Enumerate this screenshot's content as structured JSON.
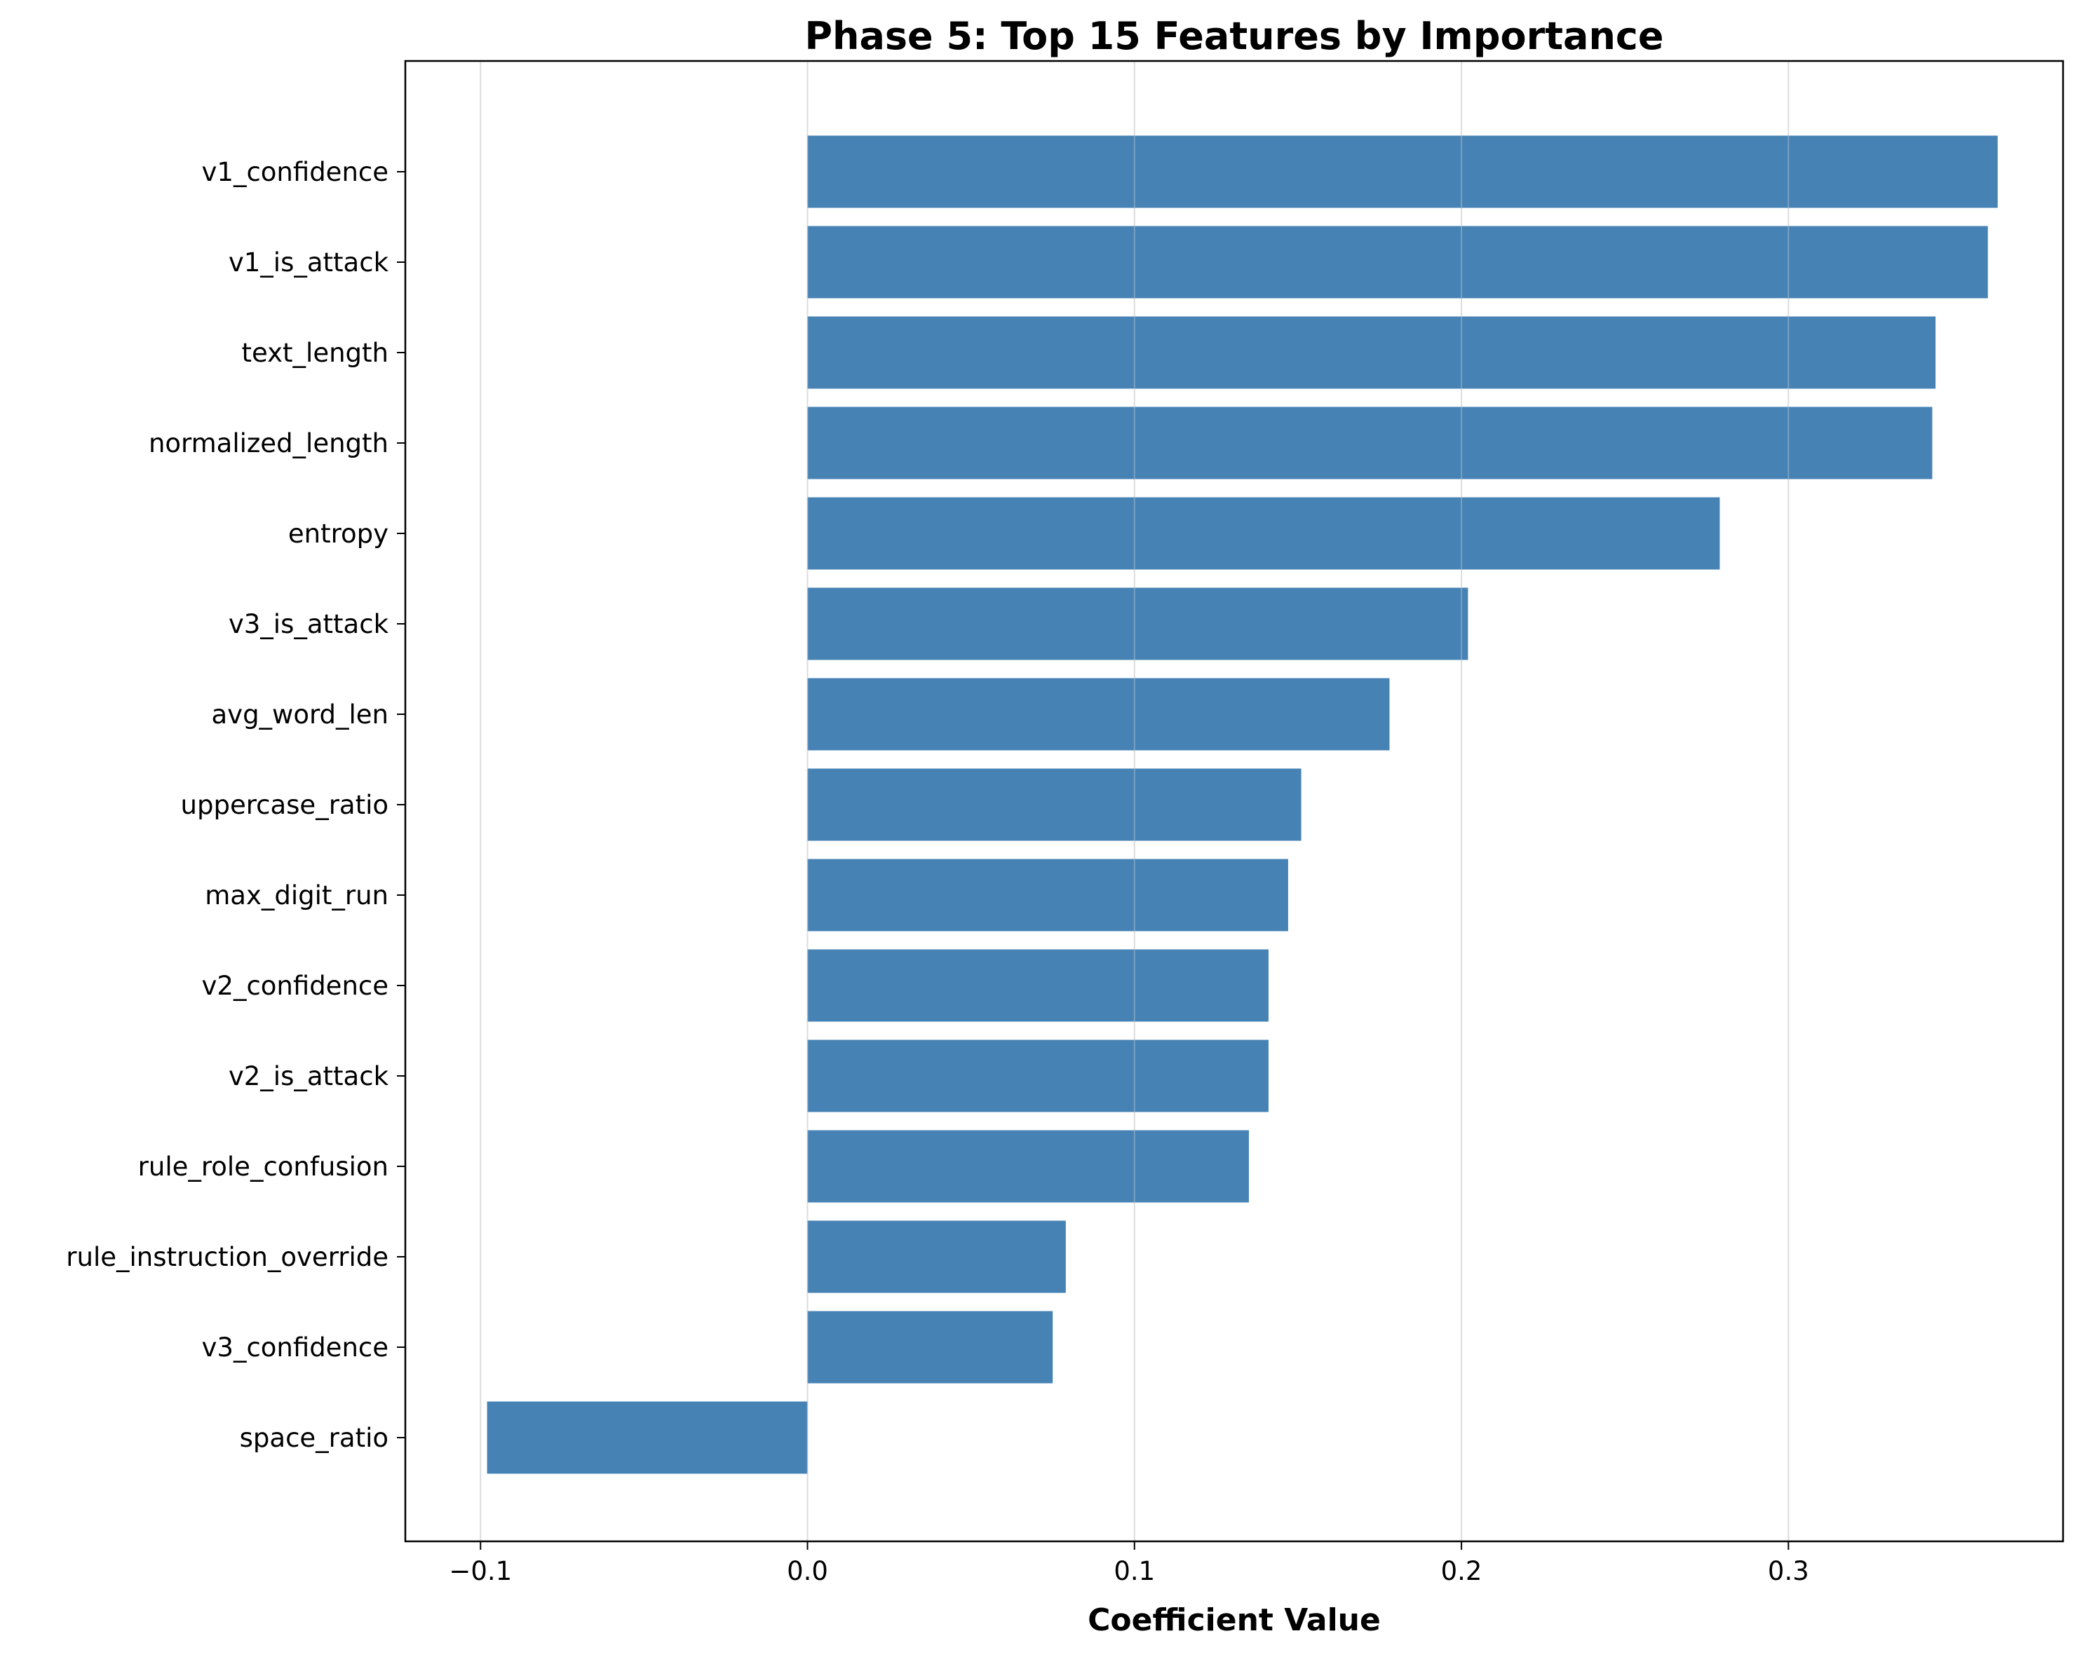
{
  "chart_data": {
    "type": "bar",
    "orientation": "horizontal",
    "title": "Phase 5: Top 15 Features by Importance",
    "xlabel": "Coefficient Value",
    "ylabel": "",
    "categories": [
      "v1_confidence",
      "v1_is_attack",
      "text_length",
      "normalized_length",
      "entropy",
      "v3_is_attack",
      "avg_word_len",
      "uppercase_ratio",
      "max_digit_run",
      "v2_confidence",
      "v2_is_attack",
      "rule_role_confusion",
      "rule_instruction_override",
      "v3_confidence",
      "space_ratio"
    ],
    "values": [
      0.364,
      0.361,
      0.345,
      0.344,
      0.279,
      0.202,
      0.178,
      0.151,
      0.147,
      0.141,
      0.141,
      0.135,
      0.079,
      0.075,
      -0.098
    ],
    "xlim": [
      -0.123,
      0.384
    ],
    "xticks": [
      -0.1,
      0.0,
      0.1,
      0.2,
      0.3
    ],
    "xtick_labels": [
      "−0.1",
      "0.0",
      "0.1",
      "0.2",
      "0.3"
    ],
    "grid": "vertical",
    "bar_color": "#4682b4"
  }
}
